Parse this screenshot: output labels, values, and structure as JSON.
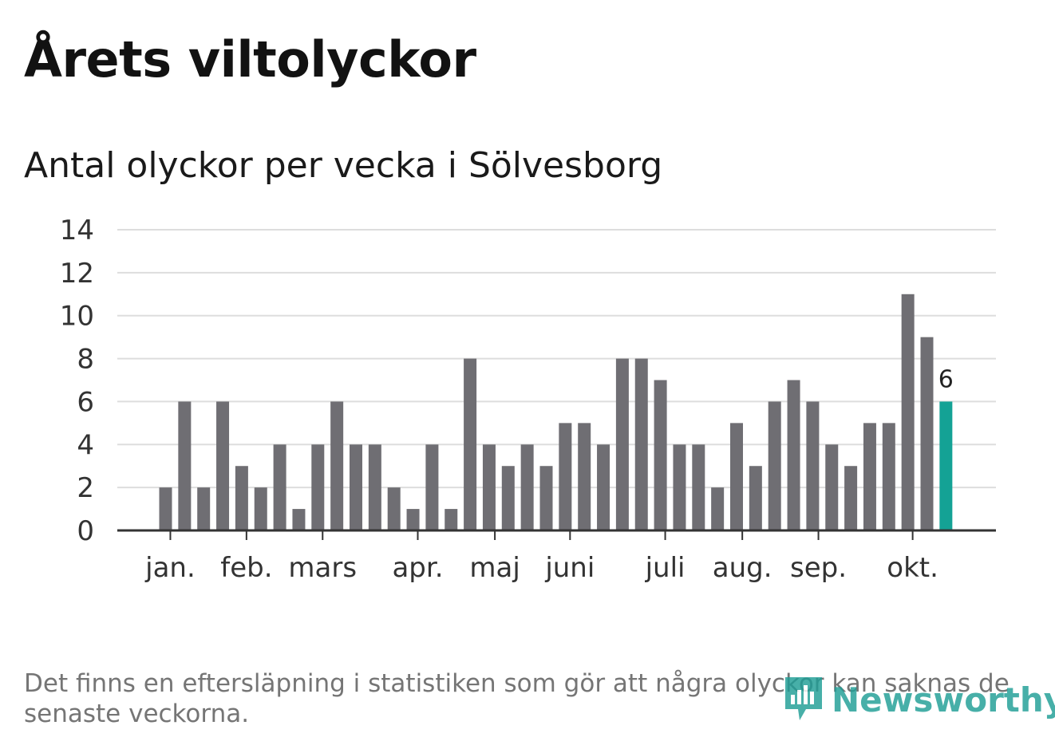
{
  "title": "Årets viltolyckor",
  "subtitle": "Antal olyckor per vecka i Sölvesborg",
  "footnote": "Det finns en eftersläpning i statistiken som gör att några olyckor kan saknas de senaste veckorna.",
  "brand": {
    "name": "Newsworthy",
    "icon": "bar-chart-speech-bubble-icon"
  },
  "colors": {
    "bar": "#6f6e73",
    "highlight": "#14a295",
    "grid": "#dddddd",
    "axis": "#333333",
    "brand": "#1f9e96"
  },
  "chart_data": {
    "type": "bar",
    "title": "Antal olyckor per vecka i Sölvesborg",
    "xlabel": "",
    "ylabel": "",
    "ylim": [
      0,
      14
    ],
    "yticks": [
      0,
      2,
      4,
      6,
      8,
      10,
      12,
      14
    ],
    "grid": true,
    "values": [
      2,
      6,
      2,
      6,
      3,
      2,
      4,
      1,
      4,
      6,
      4,
      4,
      2,
      1,
      4,
      1,
      8,
      4,
      3,
      4,
      3,
      5,
      5,
      4,
      8,
      8,
      7,
      4,
      4,
      2,
      5,
      3,
      6,
      7,
      6,
      4,
      3,
      5,
      5,
      11,
      9,
      6
    ],
    "highlight_index": 41,
    "highlight_label": "6",
    "month_ticks": [
      {
        "label": "jan.",
        "week_index": 0.25
      },
      {
        "label": "feb.",
        "week_index": 4.25
      },
      {
        "label": "mars",
        "week_index": 8.25
      },
      {
        "label": "apr.",
        "week_index": 13.25
      },
      {
        "label": "maj",
        "week_index": 17.3
      },
      {
        "label": "juni",
        "week_index": 21.25
      },
      {
        "label": "juli",
        "week_index": 26.25
      },
      {
        "label": "aug.",
        "week_index": 30.3
      },
      {
        "label": "sep.",
        "week_index": 34.3
      },
      {
        "label": "okt.",
        "week_index": 39.25
      }
    ]
  }
}
